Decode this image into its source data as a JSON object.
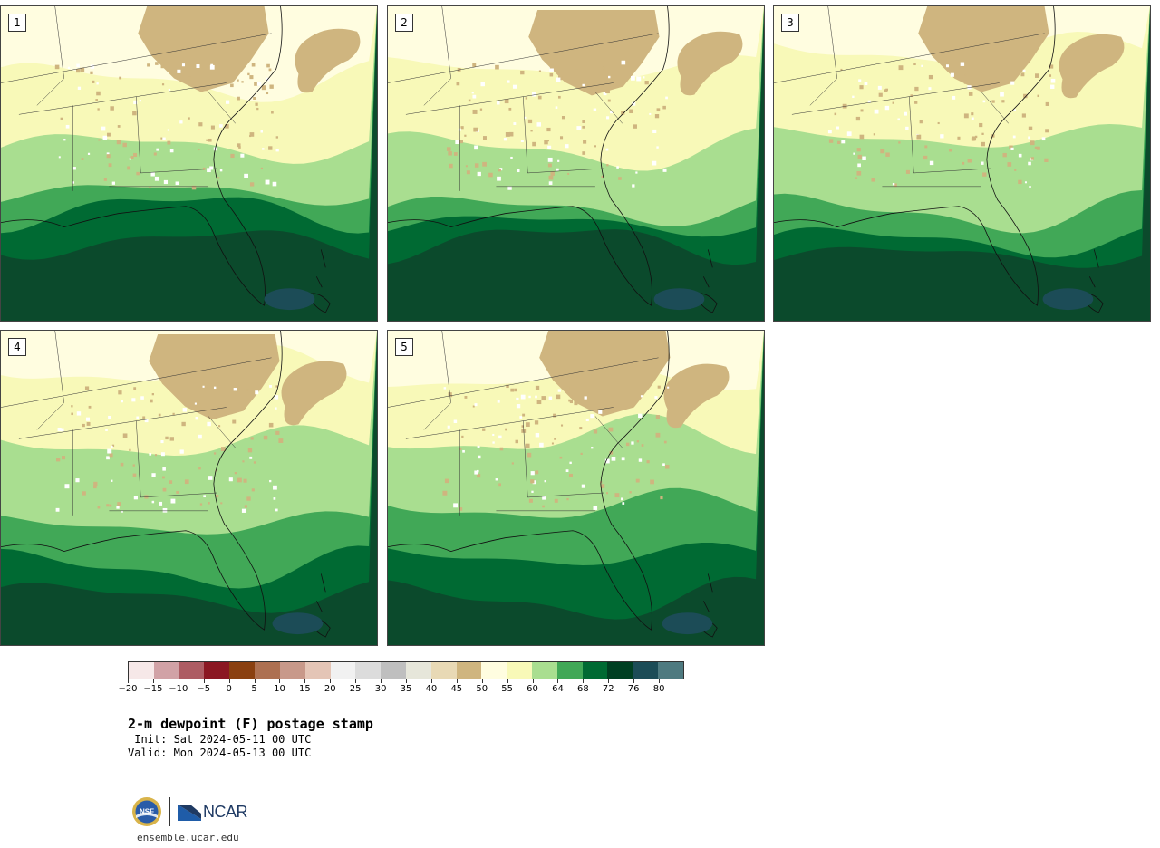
{
  "panels": [
    {
      "label": "1",
      "variant": 0
    },
    {
      "label": "2",
      "variant": 1
    },
    {
      "label": "3",
      "variant": 2
    },
    {
      "label": "4",
      "variant": 3
    },
    {
      "label": "5",
      "variant": 4
    }
  ],
  "colorbar": {
    "colors": [
      "#f6e8e8",
      "#d1a2a6",
      "#ad5c63",
      "#8b1722",
      "#8a4010",
      "#ad7051",
      "#c8998a",
      "#e4c5b6",
      "#f1f1f1",
      "#dcdcdc",
      "#bfbfbf",
      "#e6e6da",
      "#e8d9b5",
      "#cfb57f",
      "#fffde0",
      "#f8f9b8",
      "#a9de90",
      "#41a857",
      "#006a33",
      "#003f22",
      "#1c4c57",
      "#4e7a80"
    ],
    "tick_labels": [
      "−20",
      "−15",
      "−10",
      "−5",
      "0",
      "5",
      "10",
      "15",
      "20",
      "25",
      "30",
      "35",
      "40",
      "45",
      "50",
      "55",
      "60",
      "64",
      "68",
      "72",
      "76",
      "80"
    ]
  },
  "title": "2-m dewpoint (F) postage stamp",
  "init_line": " Init: Sat 2024-05-11 00 UTC",
  "valid_line": "Valid: Mon 2024-05-13 00 UTC",
  "logos": {
    "nsf": "NSF",
    "ncar": "NCAR"
  },
  "site": "ensemble.ucar.edu"
}
